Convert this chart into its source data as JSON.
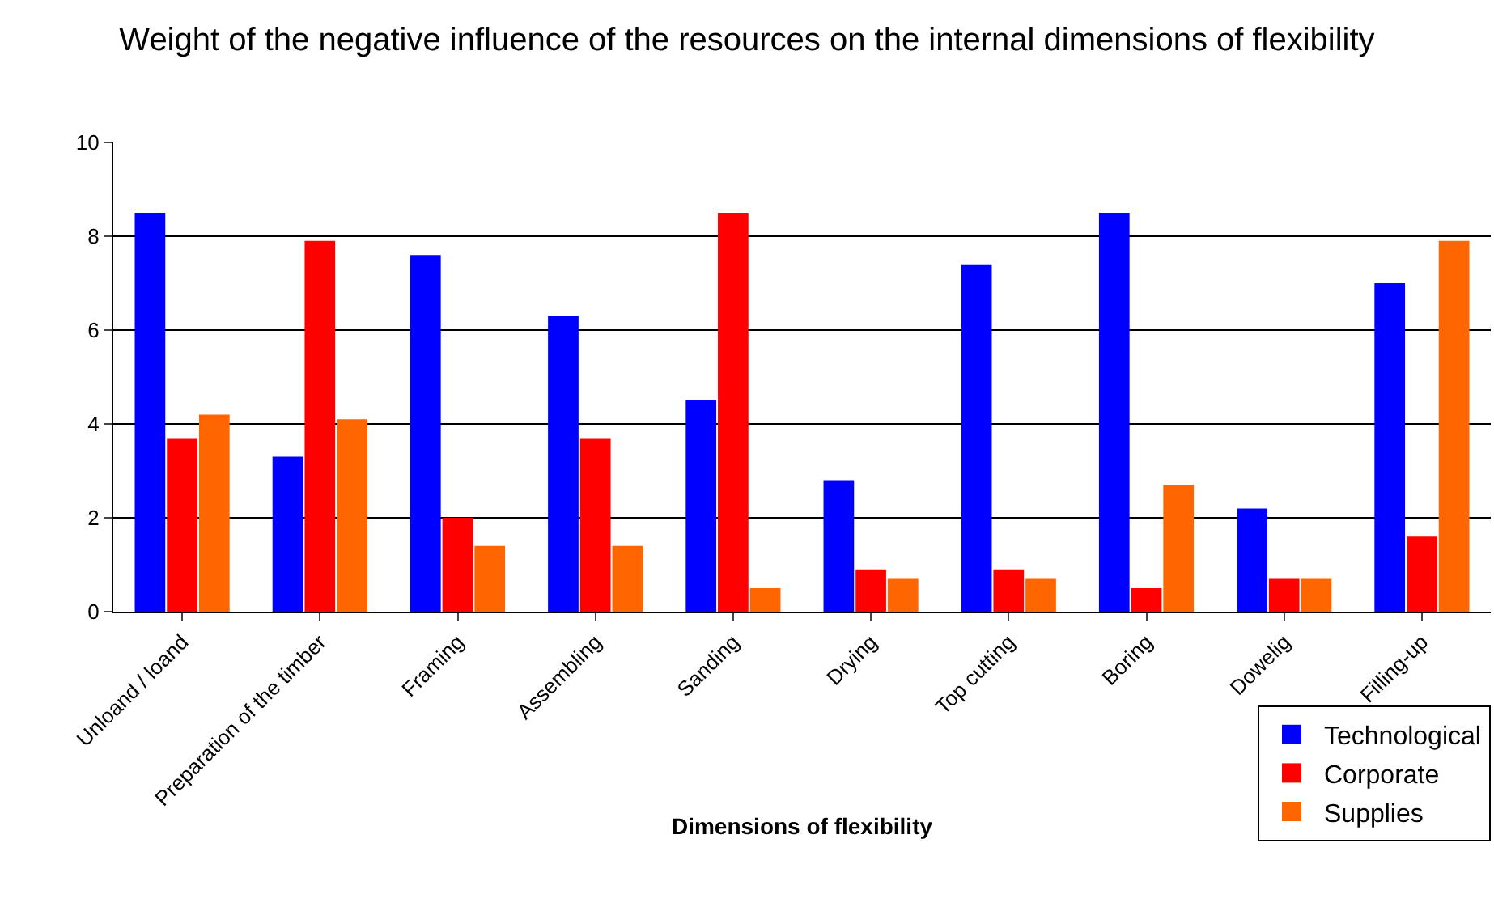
{
  "chart_data": {
    "type": "bar",
    "title": "Weight of the negative influence of the resources on the internal dimensions of flexibility",
    "xlabel": "Dimensions of flexibility",
    "categories": [
      "Unloand / loand",
      "Preparation of the timber",
      "Framing",
      "Assembling",
      "Sanding",
      "Drying",
      "Top cutting",
      "Boring",
      "Dowelig",
      "Filling-up"
    ],
    "series": [
      {
        "name": "Technological",
        "color": "#0000ff",
        "values": [
          8.5,
          3.3,
          7.6,
          6.3,
          4.5,
          2.8,
          7.4,
          8.5,
          2.2,
          7.0
        ]
      },
      {
        "name": "Corporate",
        "color": "#ff0000",
        "values": [
          3.7,
          7.9,
          2.0,
          3.7,
          8.5,
          0.9,
          0.9,
          0.5,
          0.7,
          1.6
        ]
      },
      {
        "name": "Supplies",
        "color": "#ff6600",
        "values": [
          4.2,
          4.1,
          1.4,
          1.4,
          0.5,
          0.7,
          0.7,
          2.7,
          0.7,
          7.9
        ]
      }
    ],
    "ylim": [
      0,
      10
    ],
    "yticks": [
      0,
      2,
      4,
      6,
      8,
      10
    ],
    "grid": "y",
    "legend": "bottom right"
  }
}
